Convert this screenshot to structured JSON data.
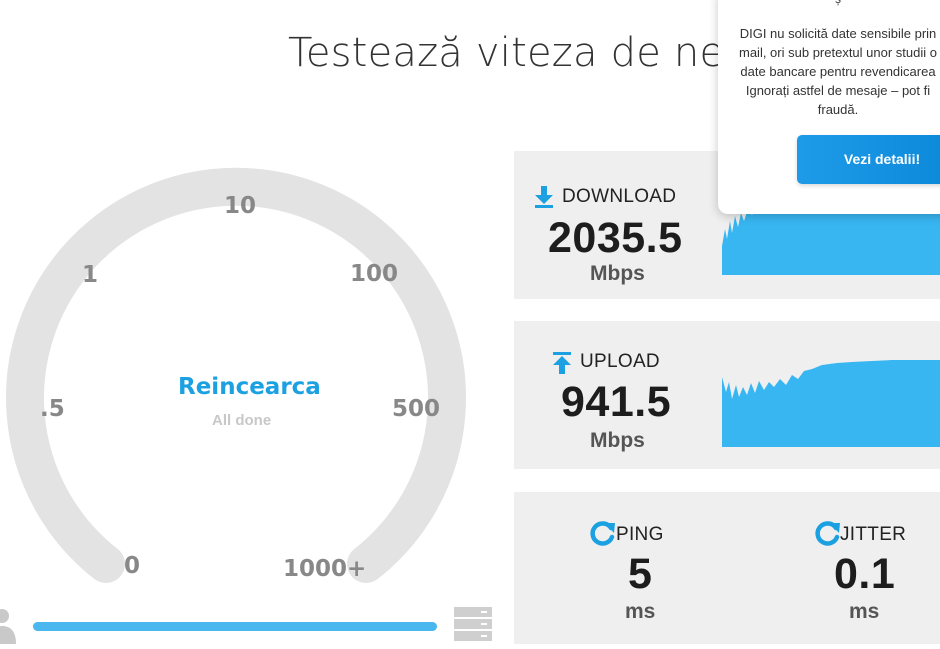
{
  "page": {
    "title": "Testează viteza de net"
  },
  "gauge": {
    "scale_labels": {
      "v0": "0",
      "v05": ".5",
      "v1": "1",
      "v10": "10",
      "v100": "100",
      "v500": "500",
      "v1000": "1000+"
    },
    "center_button": "Reincearca",
    "status": "All done",
    "progress_fraction": 1.0
  },
  "download": {
    "label": "DOWNLOAD",
    "value": "2035.5",
    "unit": "Mbps"
  },
  "upload": {
    "label": "UPLOAD",
    "value": "941.5",
    "unit": "Mbps"
  },
  "ping": {
    "label": "PING",
    "value": "5",
    "unit": "ms"
  },
  "jitter": {
    "label": "JITTER",
    "value": "0.1",
    "unit": "ms"
  },
  "popup": {
    "heading_fragment": "ș",
    "lines": [
      "DIGI nu solicită date sensibile prin",
      "mail, ori sub pretextul unor studii o",
      "date bancare pentru revendicarea",
      "Ignorați astfel de mesaje – pot fi",
      "fraudă."
    ],
    "button": "Vezi detalii!"
  },
  "colors": {
    "accent": "#1ba1e2",
    "graph_fill": "#38b6f2",
    "gauge_track": "#e3e3e3",
    "panel_bg": "#efefef"
  }
}
